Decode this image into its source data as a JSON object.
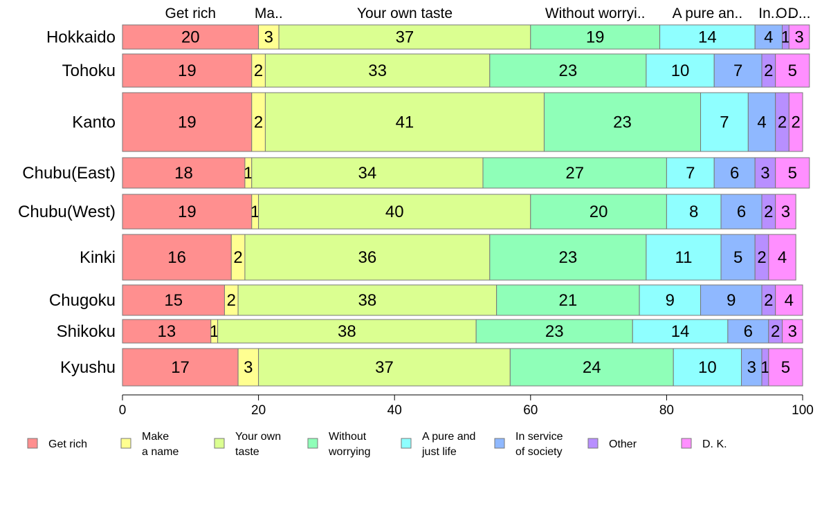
{
  "chart_data": {
    "type": "bar",
    "orientation": "horizontal",
    "stacked": true,
    "title": "",
    "xlabel": "",
    "ylabel": "",
    "xlim": [
      0,
      100
    ],
    "xticks": [
      0,
      20,
      40,
      60,
      80,
      100
    ],
    "grid": false,
    "legend_position": "bottom",
    "categories": [
      "Hokkaido",
      "Tohoku",
      "Kanto",
      "Chubu(East)",
      "Chubu(West)",
      "Kinki",
      "Chugoku",
      "Shikoku",
      "Kyushu"
    ],
    "top_labels": [
      "Get rich",
      "Ma..",
      "Your own taste",
      "Without worryi..",
      "A pure an..",
      "In..",
      "O..",
      "D..."
    ],
    "series": [
      {
        "name": "Get rich",
        "legend_lines": [
          "Get rich"
        ],
        "color": "#ff8f8f",
        "values": [
          20,
          19,
          19,
          18,
          19,
          16,
          15,
          13,
          17
        ]
      },
      {
        "name": "Make a name",
        "legend_lines": [
          "Make",
          "a name"
        ],
        "color": "#ffff91",
        "values": [
          3,
          2,
          2,
          1,
          1,
          2,
          2,
          1,
          3
        ]
      },
      {
        "name": "Your own taste",
        "legend_lines": [
          "Your own",
          "taste"
        ],
        "color": "#dbff91",
        "values": [
          37,
          33,
          41,
          34,
          40,
          36,
          38,
          38,
          37
        ]
      },
      {
        "name": "Without worrying",
        "legend_lines": [
          "Without",
          "worrying"
        ],
        "color": "#8fffb8",
        "values": [
          19,
          23,
          23,
          27,
          20,
          23,
          21,
          23,
          24
        ]
      },
      {
        "name": "A pure and just life",
        "legend_lines": [
          "A pure and",
          "just life"
        ],
        "color": "#8fffff",
        "values": [
          14,
          10,
          7,
          7,
          8,
          11,
          9,
          14,
          10
        ]
      },
      {
        "name": "In service of society",
        "legend_lines": [
          "In service",
          "of society"
        ],
        "color": "#8fb8ff",
        "values": [
          4,
          7,
          4,
          6,
          6,
          5,
          9,
          6,
          3
        ]
      },
      {
        "name": "Other",
        "legend_lines": [
          "Other"
        ],
        "color": "#b88fff",
        "values": [
          1,
          2,
          2,
          3,
          2,
          2,
          2,
          2,
          1
        ]
      },
      {
        "name": "D. K.",
        "legend_lines": [
          "D. K."
        ],
        "color": "#ff8fff",
        "values": [
          3,
          5,
          2,
          5,
          3,
          4,
          4,
          3,
          5
        ]
      }
    ]
  }
}
